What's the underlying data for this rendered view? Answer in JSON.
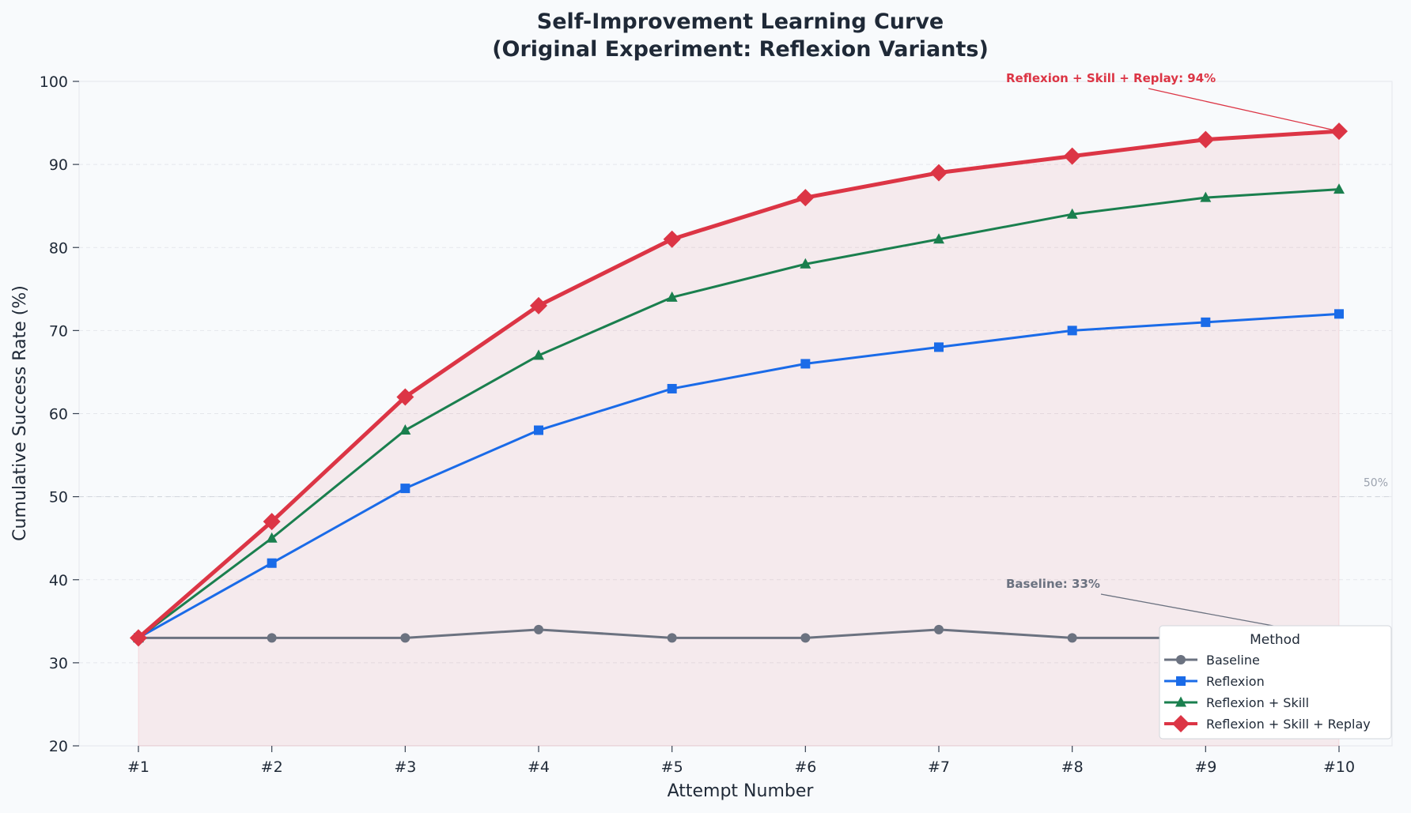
{
  "chart_data": {
    "type": "line",
    "title": "Self-Improvement Learning Curve",
    "subtitle": "(Original Experiment: Reflexion Variants)",
    "xlabel": "Attempt Number",
    "ylabel": "Cumulative Success Rate (%)",
    "categories": [
      "#1",
      "#2",
      "#3",
      "#4",
      "#5",
      "#6",
      "#7",
      "#8",
      "#9",
      "#10"
    ],
    "ylim": [
      20,
      100
    ],
    "yticks": [
      20,
      30,
      40,
      50,
      60,
      70,
      80,
      90,
      100
    ],
    "grid": true,
    "legend": {
      "title": "Method",
      "placement": "lower-right"
    },
    "series": [
      {
        "name": "Baseline",
        "values": [
          33,
          33,
          33,
          34,
          33,
          33,
          34,
          33,
          33,
          33
        ],
        "color": "#6b7280",
        "marker": "circle"
      },
      {
        "name": "Reflexion",
        "values": [
          33,
          42,
          51,
          58,
          63,
          66,
          68,
          70,
          71,
          72
        ],
        "color": "#1a6be8",
        "marker": "square"
      },
      {
        "name": "Reflexion + Skill",
        "values": [
          33,
          45,
          58,
          67,
          74,
          78,
          81,
          84,
          86,
          87
        ],
        "color": "#1a7f4e",
        "marker": "triangle"
      },
      {
        "name": "Reflexion + Skill + Replay",
        "values": [
          33,
          47,
          62,
          73,
          81,
          86,
          89,
          91,
          93,
          94
        ],
        "color": "#dc3545",
        "marker": "diamond",
        "filled_area": true
      }
    ],
    "annotations": [
      {
        "text": "Reflexion + Skill + Replay: 94%",
        "series_index": 3,
        "point_index": 9,
        "color": "#dc3545"
      },
      {
        "text": "Baseline: 33%",
        "series_index": 0,
        "point_index": 9,
        "color": "#6b7280"
      }
    ],
    "reference_lines": [
      {
        "value": 50,
        "label": "50%"
      }
    ]
  }
}
